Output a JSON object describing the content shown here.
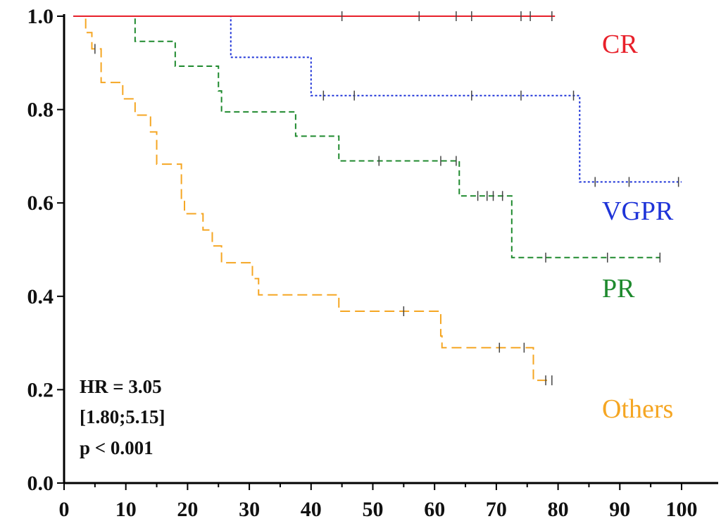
{
  "chart_data": {
    "type": "line",
    "title": "",
    "xlabel": "",
    "ylabel": "",
    "xlim": [
      0,
      105
    ],
    "ylim": [
      0,
      1.0
    ],
    "x_ticks": [
      0,
      10,
      20,
      30,
      40,
      50,
      60,
      70,
      80,
      90,
      100
    ],
    "x_tick_labels": [
      "0",
      "10",
      "20",
      "30",
      "40",
      "50",
      "60",
      "70",
      "80",
      "90",
      "100"
    ],
    "y_ticks": [
      0,
      0.2,
      0.4,
      0.6,
      0.8,
      1.0
    ],
    "y_tick_labels": [
      "0.0",
      "0.2",
      "0.4",
      "0.6",
      "0.8",
      "1.0"
    ],
    "series": [
      {
        "name": "CR",
        "color": "#e8202a",
        "dash": "solid",
        "steps": [
          [
            1.5,
            1.0
          ],
          [
            79.5,
            1.0
          ]
        ],
        "censors": [
          [
            45,
            1.0
          ],
          [
            57.5,
            1.0
          ],
          [
            63.5,
            1.0
          ],
          [
            66,
            1.0
          ],
          [
            74,
            1.0
          ],
          [
            75.5,
            1.0
          ],
          [
            79,
            1.0
          ]
        ]
      },
      {
        "name": "VGPR",
        "color": "#1f34d8",
        "dash": "dotted",
        "steps": [
          [
            1.5,
            1.0
          ],
          [
            27,
            0.912
          ],
          [
            40,
            0.83
          ],
          [
            83.5,
            0.645
          ],
          [
            100,
            0.645
          ]
        ],
        "censors": [
          [
            42,
            0.83
          ],
          [
            47,
            0.83
          ],
          [
            66,
            0.83
          ],
          [
            74,
            0.83
          ],
          [
            82.5,
            0.83
          ],
          [
            86,
            0.645
          ],
          [
            91.5,
            0.645
          ],
          [
            99.5,
            0.645
          ]
        ]
      },
      {
        "name": "PR",
        "color": "#1f8a2e",
        "dash": "dashed",
        "steps": [
          [
            1.5,
            1.0
          ],
          [
            11.5,
            0.946
          ],
          [
            18,
            0.893
          ],
          [
            25,
            0.84
          ],
          [
            25.5,
            0.795
          ],
          [
            37.5,
            0.743
          ],
          [
            44.5,
            0.69
          ],
          [
            64,
            0.615
          ],
          [
            72.5,
            0.483
          ],
          [
            96.5,
            0.483
          ]
        ],
        "censors": [
          [
            51,
            0.69
          ],
          [
            61,
            0.69
          ],
          [
            63.5,
            0.69
          ],
          [
            67,
            0.615
          ],
          [
            68.5,
            0.615
          ],
          [
            69.5,
            0.615
          ],
          [
            71,
            0.615
          ],
          [
            78,
            0.483
          ],
          [
            88,
            0.483
          ],
          [
            96.5,
            0.483
          ]
        ]
      },
      {
        "name": "Others",
        "color": "#f5a623",
        "dash": "longdash",
        "steps": [
          [
            1.5,
            1.0
          ],
          [
            3.5,
            0.965
          ],
          [
            4.5,
            0.93
          ],
          [
            6,
            0.858
          ],
          [
            9.5,
            0.823
          ],
          [
            11.5,
            0.788
          ],
          [
            14,
            0.752
          ],
          [
            15,
            0.683
          ],
          [
            19,
            0.61
          ],
          [
            19.5,
            0.577
          ],
          [
            22.5,
            0.542
          ],
          [
            24,
            0.508
          ],
          [
            25.5,
            0.472
          ],
          [
            30.5,
            0.438
          ],
          [
            31.5,
            0.403
          ],
          [
            44.5,
            0.368
          ],
          [
            61,
            0.315
          ],
          [
            61.2,
            0.29
          ],
          [
            76,
            0.22
          ],
          [
            79,
            0.22
          ]
        ],
        "censors": [
          [
            5,
            0.93
          ],
          [
            55,
            0.368
          ],
          [
            70.5,
            0.29
          ],
          [
            74.5,
            0.29
          ],
          [
            78,
            0.22
          ],
          [
            79,
            0.22
          ]
        ]
      }
    ],
    "annotations": {
      "hr_line": "HR = 3.05",
      "ci_line": "[1.80;5.15]",
      "p_line": "p < 0.001"
    }
  }
}
